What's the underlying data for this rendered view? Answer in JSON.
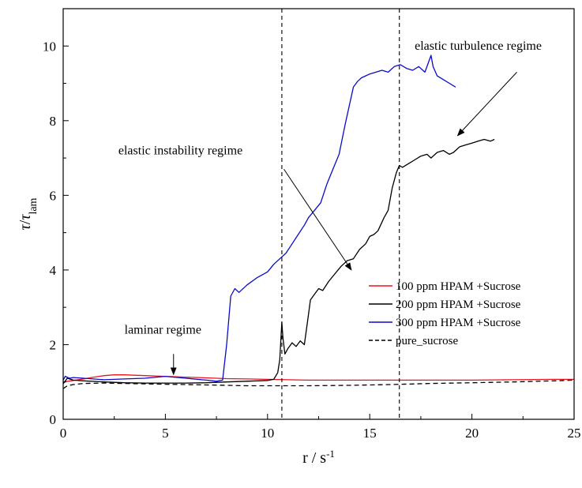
{
  "chart_data": {
    "type": "line",
    "title": "",
    "xlabel": {
      "base": "r / s",
      "sup": "-1"
    },
    "ylabel": {
      "num": "τ",
      "den": "τ",
      "den_sub": "lam"
    },
    "xlim": [
      0,
      25
    ],
    "ylim": [
      0,
      11
    ],
    "x_ticks": [
      0,
      5,
      10,
      15,
      20,
      25
    ],
    "y_ticks": [
      0,
      2,
      4,
      6,
      8,
      10
    ],
    "grid": false,
    "legend_placement": "lower-right",
    "vlines": [
      {
        "x": 10.7,
        "style": "dashed"
      },
      {
        "x": 16.45,
        "style": "dashed"
      }
    ],
    "annotations": [
      {
        "text": "laminar regime",
        "text_xy": [
          3.0,
          2.3
        ],
        "arrow_from": [
          5.4,
          1.75
        ],
        "arrow_to": [
          5.4,
          1.2
        ]
      },
      {
        "text": "elastic instability regime",
        "text_xy": [
          2.7,
          7.1
        ],
        "arrow_from": [
          10.8,
          6.7
        ],
        "arrow_to": [
          14.1,
          4.0
        ]
      },
      {
        "text": "elastic turbulence regime",
        "text_xy": [
          17.2,
          9.9
        ],
        "arrow_from": [
          22.2,
          9.3
        ],
        "arrow_to": [
          19.3,
          7.6
        ]
      }
    ],
    "series": [
      {
        "name": "100 ppm HPAM +Sucrose",
        "color": "#e8141e",
        "dash": "",
        "x": [
          0,
          0.5,
          1,
          1.5,
          2,
          2.5,
          3,
          3.5,
          4,
          5,
          6,
          7,
          8,
          9,
          10,
          11,
          12,
          14,
          16,
          18,
          20,
          22,
          24,
          25
        ],
        "y": [
          1.0,
          1.04,
          1.08,
          1.13,
          1.17,
          1.19,
          1.19,
          1.18,
          1.17,
          1.15,
          1.13,
          1.11,
          1.09,
          1.08,
          1.07,
          1.06,
          1.05,
          1.05,
          1.05,
          1.05,
          1.05,
          1.06,
          1.07,
          1.07
        ]
      },
      {
        "name": "200 ppm HPAM +Sucrose",
        "color": "#000000",
        "dash": "",
        "x": [
          0,
          0.2,
          0.5,
          1,
          2,
          3,
          4,
          5,
          6,
          7,
          8,
          9,
          9.5,
          10,
          10.3,
          10.5,
          10.6,
          10.7,
          10.75,
          10.85,
          11.0,
          11.2,
          11.4,
          11.6,
          11.8,
          12.0,
          12.1,
          12.3,
          12.5,
          12.7,
          13.0,
          13.3,
          13.6,
          13.9,
          14.2,
          14.5,
          14.8,
          15.0,
          15.2,
          15.4,
          15.7,
          15.9,
          16.1,
          16.3,
          16.45,
          16.6,
          16.9,
          17.2,
          17.5,
          17.8,
          18.0,
          18.3,
          18.6,
          18.9,
          19.1,
          19.4,
          19.7,
          20.0,
          20.3,
          20.6,
          20.9,
          21.1
        ],
        "y": [
          0.95,
          1.1,
          1.05,
          1.03,
          1.0,
          0.98,
          0.97,
          0.97,
          0.97,
          0.98,
          1.0,
          1.02,
          1.03,
          1.04,
          1.07,
          1.25,
          1.6,
          2.6,
          2.2,
          1.75,
          1.9,
          2.05,
          1.95,
          2.1,
          2.0,
          2.8,
          3.2,
          3.35,
          3.5,
          3.45,
          3.7,
          3.9,
          4.1,
          4.25,
          4.3,
          4.55,
          4.7,
          4.9,
          4.95,
          5.05,
          5.4,
          5.6,
          6.2,
          6.6,
          6.8,
          6.75,
          6.85,
          6.95,
          7.05,
          7.1,
          7.0,
          7.15,
          7.2,
          7.1,
          7.15,
          7.3,
          7.35,
          7.4,
          7.45,
          7.5,
          7.45,
          7.5
        ]
      },
      {
        "name": "300 ppm HPAM +Sucrose",
        "color": "#0a0acd",
        "dash": "",
        "x": [
          0,
          0.1,
          0.3,
          0.5,
          1,
          2,
          3,
          4,
          5,
          6,
          7,
          7.5,
          7.8,
          8.0,
          8.2,
          8.4,
          8.6,
          9.0,
          9.5,
          10.0,
          10.3,
          10.6,
          10.9,
          11.2,
          11.5,
          11.8,
          12.0,
          12.3,
          12.6,
          12.9,
          13.2,
          13.5,
          13.8,
          14.0,
          14.2,
          14.4,
          14.6,
          14.8,
          15.0,
          15.3,
          15.6,
          15.9,
          16.2,
          16.5,
          16.8,
          17.1,
          17.4,
          17.7,
          18.0,
          18.1,
          18.3,
          18.6,
          18.9,
          19.2
        ],
        "y": [
          1.05,
          1.15,
          1.1,
          1.12,
          1.1,
          1.06,
          1.08,
          1.1,
          1.15,
          1.1,
          1.05,
          1.02,
          1.05,
          2.0,
          3.3,
          3.5,
          3.4,
          3.6,
          3.8,
          3.95,
          4.15,
          4.3,
          4.45,
          4.7,
          4.95,
          5.2,
          5.4,
          5.6,
          5.8,
          6.3,
          6.7,
          7.1,
          7.9,
          8.4,
          8.9,
          9.05,
          9.15,
          9.2,
          9.25,
          9.3,
          9.35,
          9.3,
          9.45,
          9.5,
          9.4,
          9.35,
          9.45,
          9.3,
          9.75,
          9.45,
          9.2,
          9.1,
          9.0,
          8.9
        ]
      },
      {
        "name": "pure_sucrose",
        "color": "#000000",
        "dash": "6,4",
        "x": [
          0,
          0.2,
          0.5,
          1,
          2,
          3,
          4,
          5,
          6,
          7,
          8,
          9,
          10,
          11,
          12,
          14,
          16,
          18,
          20,
          22,
          24,
          25
        ],
        "y": [
          0.82,
          0.9,
          0.93,
          0.96,
          0.97,
          0.96,
          0.95,
          0.94,
          0.93,
          0.92,
          0.91,
          0.9,
          0.9,
          0.9,
          0.9,
          0.91,
          0.93,
          0.96,
          0.98,
          1.0,
          1.03,
          1.05
        ]
      }
    ]
  }
}
